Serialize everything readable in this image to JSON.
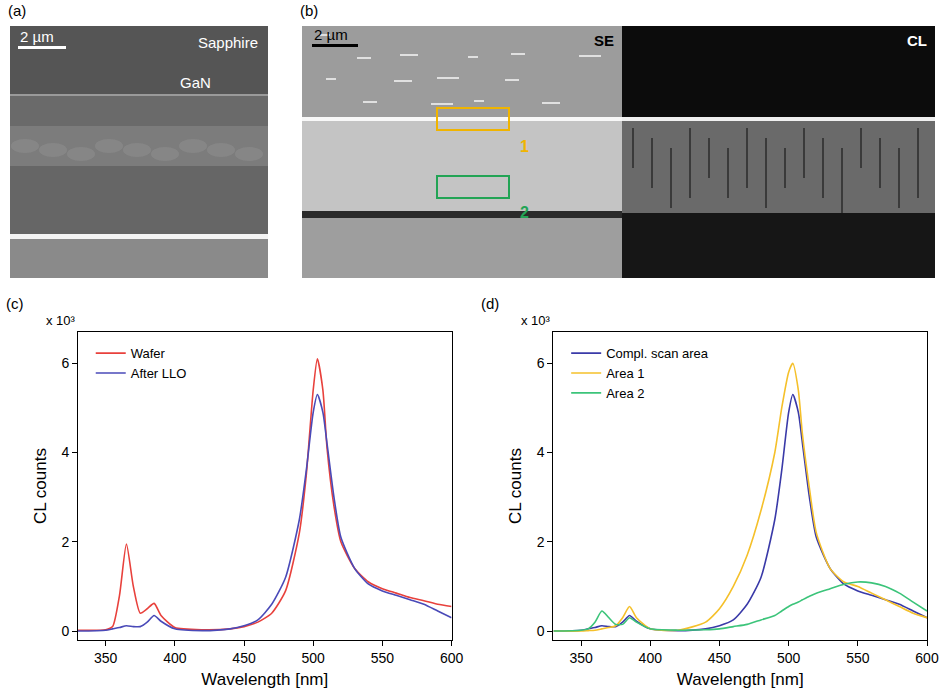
{
  "images": [
    {
      "panel": "(a)",
      "scale_bar": "2 µm",
      "texts": [
        "Sapphire",
        "GaN"
      ]
    },
    {
      "panel": "(b)",
      "scale_bar": "2 µm",
      "texts": [
        "SE",
        "CL"
      ],
      "regions": [
        {
          "label": "1",
          "color": "#f0b400"
        },
        {
          "label": "2",
          "color": "#22a455"
        }
      ]
    }
  ],
  "chart_data": [
    {
      "type": "line",
      "panel": "(c)",
      "annotation": "x 10³",
      "x_label": "Wavelength [nm]",
      "y_label": "CL counts",
      "xlim": [
        330,
        600
      ],
      "xticks": [
        350,
        400,
        450,
        500,
        550,
        600
      ],
      "ylim": [
        -0.2,
        6.7
      ],
      "yticks": [
        0,
        2,
        4,
        6
      ],
      "grid": false,
      "legend": "top left",
      "x": [
        330,
        350,
        355,
        360,
        365,
        370,
        375,
        380,
        385,
        390,
        400,
        420,
        440,
        450,
        460,
        470,
        480,
        490,
        495,
        500,
        503,
        507,
        510,
        515,
        520,
        530,
        540,
        550,
        560,
        570,
        580,
        590,
        600
      ],
      "series": [
        {
          "name": "Wafer",
          "color": "#e8413c",
          "values": [
            0.02,
            0.03,
            0.1,
            0.8,
            1.95,
            1.0,
            0.4,
            0.5,
            0.62,
            0.35,
            0.08,
            0.03,
            0.05,
            0.1,
            0.2,
            0.4,
            0.9,
            2.2,
            3.5,
            5.4,
            6.1,
            5.4,
            4.1,
            2.8,
            2.0,
            1.4,
            1.1,
            0.95,
            0.85,
            0.75,
            0.68,
            0.6,
            0.55
          ]
        },
        {
          "name": "After LLO",
          "color": "#4a4ab8",
          "values": [
            0,
            0.02,
            0.05,
            0.08,
            0.12,
            0.1,
            0.1,
            0.2,
            0.35,
            0.22,
            0.05,
            0.01,
            0.05,
            0.12,
            0.25,
            0.6,
            1.2,
            2.5,
            3.6,
            4.9,
            5.3,
            4.9,
            4.2,
            3.0,
            2.1,
            1.4,
            1.05,
            0.9,
            0.8,
            0.7,
            0.6,
            0.45,
            0.3
          ]
        }
      ]
    },
    {
      "type": "line",
      "panel": "(d)",
      "annotation": "x 10³",
      "x_label": "Wavelength [nm]",
      "y_label": "CL counts",
      "xlim": [
        330,
        600
      ],
      "xticks": [
        350,
        400,
        450,
        500,
        550,
        600
      ],
      "ylim": [
        -0.2,
        6.7
      ],
      "yticks": [
        0,
        2,
        4,
        6
      ],
      "grid": false,
      "legend": "top left",
      "x": [
        330,
        350,
        355,
        360,
        365,
        370,
        375,
        380,
        385,
        390,
        400,
        420,
        440,
        450,
        460,
        470,
        480,
        490,
        495,
        500,
        503,
        507,
        510,
        515,
        520,
        530,
        540,
        550,
        560,
        570,
        580,
        590,
        600
      ],
      "series": [
        {
          "name": "Compl. scan area",
          "color": "#3a3aa8",
          "values": [
            0,
            0.02,
            0.05,
            0.08,
            0.12,
            0.1,
            0.1,
            0.2,
            0.35,
            0.22,
            0.05,
            0.01,
            0.05,
            0.12,
            0.25,
            0.6,
            1.2,
            2.5,
            3.6,
            4.9,
            5.3,
            4.9,
            4.2,
            3.0,
            2.1,
            1.4,
            1.05,
            0.9,
            0.8,
            0.7,
            0.6,
            0.45,
            0.3
          ]
        },
        {
          "name": "Area 1",
          "color": "#f5c02a",
          "values": [
            0,
            0,
            0.01,
            0.02,
            0.05,
            0.08,
            0.12,
            0.3,
            0.55,
            0.3,
            0.05,
            0.02,
            0.2,
            0.5,
            1.0,
            1.7,
            2.7,
            4.0,
            5.0,
            5.8,
            6.0,
            5.4,
            4.4,
            3.2,
            2.2,
            1.4,
            1.1,
            1.0,
            0.85,
            0.7,
            0.55,
            0.4,
            0.3
          ]
        },
        {
          "name": "Area 2",
          "color": "#3cc47a",
          "values": [
            0,
            0.02,
            0.05,
            0.2,
            0.45,
            0.3,
            0.15,
            0.15,
            0.3,
            0.2,
            0.05,
            0.02,
            0.03,
            0.05,
            0.1,
            0.15,
            0.25,
            0.35,
            0.45,
            0.55,
            0.6,
            0.65,
            0.7,
            0.78,
            0.85,
            0.95,
            1.05,
            1.1,
            1.08,
            1.0,
            0.85,
            0.65,
            0.45
          ]
        }
      ]
    }
  ]
}
